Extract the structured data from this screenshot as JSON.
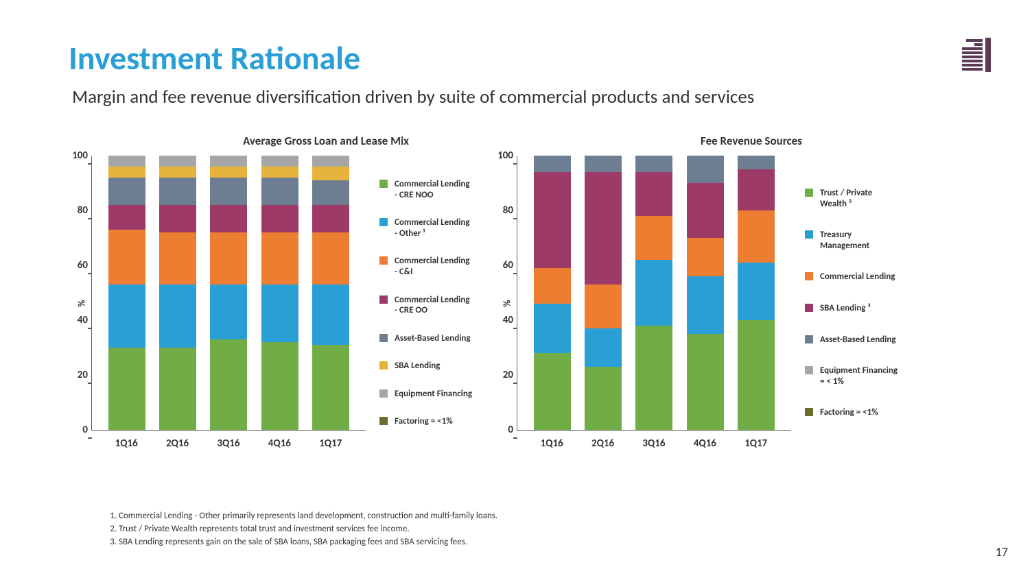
{
  "title": "Investment Rationale",
  "subtitle": "Margin and fee revenue diversification driven by suite of commercial products and services",
  "page_number": "17",
  "logo_color": "#5b3a56",
  "series_colors": {
    "green": "#70ad47",
    "blue": "#2a9fd6",
    "orange": "#ed7d31",
    "purple": "#9e3a68",
    "slate": "#6d7e93",
    "gold": "#e6b33d",
    "gray": "#a6a6a6",
    "olive": "#6b6b2f"
  },
  "chart_left": {
    "title": "Average Gross Loan and Lease Mix",
    "ylabel": "%",
    "ylim": [
      0,
      100
    ],
    "ytick_labels": [
      "0",
      "20",
      "40",
      "60",
      "80",
      "100"
    ],
    "categories": [
      "1Q16",
      "2Q16",
      "3Q16",
      "4Q16",
      "1Q17"
    ],
    "series": [
      {
        "label": "Commercial Lending - CRE NOO",
        "color": "green"
      },
      {
        "label": "Commercial Lending - Other ¹",
        "color": "blue"
      },
      {
        "label": "Commercial Lending - C&I",
        "color": "orange"
      },
      {
        "label": "Commercial Lending - CRE OO",
        "color": "purple"
      },
      {
        "label": "Asset-Based Lending",
        "color": "slate"
      },
      {
        "label": "SBA Lending",
        "color": "gold"
      },
      {
        "label": "Equipment Financing",
        "color": "gray"
      },
      {
        "label": "Factoring = <1%",
        "color": "olive"
      }
    ],
    "stacks": [
      [
        30,
        23,
        20,
        9,
        10,
        4,
        4,
        0
      ],
      [
        30,
        23,
        19,
        10,
        10,
        4,
        4,
        0
      ],
      [
        33,
        20,
        19,
        10,
        10,
        4,
        4,
        0
      ],
      [
        32,
        21,
        19,
        10,
        10,
        4,
        4,
        0
      ],
      [
        31,
        22,
        19,
        10,
        9,
        5,
        4,
        0
      ]
    ],
    "legend_row_gap": 25
  },
  "chart_right": {
    "title": "Fee Revenue Sources",
    "ylabel": "%",
    "ylim": [
      0,
      100
    ],
    "ytick_labels": [
      "0",
      "20",
      "40",
      "60",
      "80",
      "100"
    ],
    "categories": [
      "1Q16",
      "2Q16",
      "3Q16",
      "4Q16",
      "1Q17"
    ],
    "series": [
      {
        "label": "Trust / Private Wealth ²",
        "color": "green"
      },
      {
        "label": "Treasury Management",
        "color": "blue"
      },
      {
        "label": "Commercial Lending",
        "color": "orange"
      },
      {
        "label": "SBA Lending ³",
        "color": "purple"
      },
      {
        "label": "Asset-Based Lending",
        "color": "slate"
      },
      {
        "label": "Equipment Financing = < 1%",
        "color": "gray"
      },
      {
        "label": "Factoring = <1%",
        "color": "olive"
      }
    ],
    "stacks": [
      [
        28,
        18,
        13,
        35,
        6,
        0,
        0
      ],
      [
        23,
        14,
        16,
        41,
        6,
        0,
        0
      ],
      [
        38,
        24,
        16,
        16,
        6,
        0,
        0
      ],
      [
        35,
        21,
        14,
        20,
        10,
        0,
        0
      ],
      [
        40,
        21,
        19,
        15,
        5,
        0,
        0
      ]
    ],
    "legend_row_gap": 30
  },
  "footnotes": [
    "Commercial Lending - Other primarily represents land development, construction and multi-family loans.",
    "Trust / Private Wealth represents total trust and investment services fee income.",
    "SBA Lending represents gain on the sale of SBA loans, SBA packaging fees and SBA servicing fees."
  ]
}
